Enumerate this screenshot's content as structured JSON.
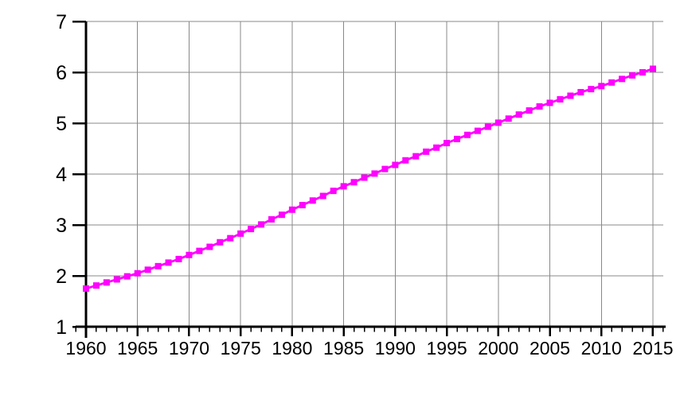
{
  "chart_data": {
    "type": "line",
    "title": "",
    "xlabel": "",
    "ylabel": "",
    "x": [
      1960,
      1961,
      1962,
      1963,
      1964,
      1965,
      1966,
      1967,
      1968,
      1969,
      1970,
      1971,
      1972,
      1973,
      1974,
      1975,
      1976,
      1977,
      1978,
      1979,
      1980,
      1981,
      1982,
      1983,
      1984,
      1985,
      1986,
      1987,
      1988,
      1989,
      1990,
      1991,
      1992,
      1993,
      1994,
      1995,
      1996,
      1997,
      1998,
      1999,
      2000,
      2001,
      2002,
      2003,
      2004,
      2005,
      2006,
      2007,
      2008,
      2009,
      2010,
      2011,
      2012,
      2013,
      2014,
      2015
    ],
    "series": [
      {
        "name": "magenta-square-series",
        "color": "#FF00FF",
        "marker": "square",
        "values": [
          1.75,
          1.81,
          1.87,
          1.93,
          1.99,
          2.05,
          2.12,
          2.19,
          2.26,
          2.33,
          2.41,
          2.49,
          2.57,
          2.66,
          2.74,
          2.83,
          2.92,
          3.01,
          3.11,
          3.2,
          3.3,
          3.39,
          3.48,
          3.57,
          3.67,
          3.76,
          3.84,
          3.93,
          4.01,
          4.1,
          4.18,
          4.27,
          4.35,
          4.44,
          4.52,
          4.61,
          4.69,
          4.77,
          4.85,
          4.93,
          5.01,
          5.09,
          5.17,
          5.25,
          5.33,
          5.4,
          5.47,
          5.54,
          5.61,
          5.67,
          5.73,
          5.8,
          5.87,
          5.94,
          6.0,
          6.07
        ]
      }
    ],
    "x_tick_labels": [
      "1960",
      "1965",
      "1970",
      "1975",
      "1980",
      "1985",
      "1990",
      "1995",
      "2000",
      "2005",
      "2010",
      "2015"
    ],
    "y_tick_labels": [
      "1",
      "2",
      "3",
      "4",
      "5",
      "6",
      "7"
    ],
    "xlim": [
      1960,
      2016
    ],
    "ylim": [
      1,
      7
    ],
    "grid": true,
    "legend_position": "none",
    "minor_x_tick_interval_years": 1
  },
  "style": {
    "series_color": "#FF00FF",
    "grid_color": "#888888",
    "axis_color": "#000000",
    "background_color": "#FFFFFF",
    "tick_label_color": "#000000"
  }
}
